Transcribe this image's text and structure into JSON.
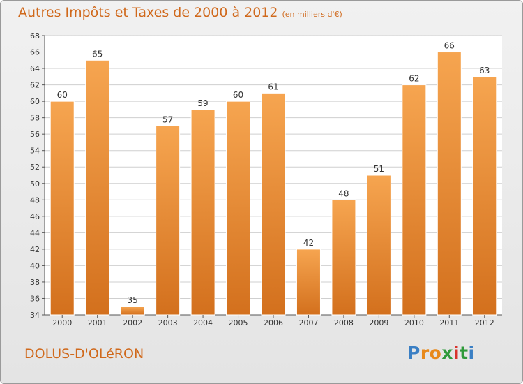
{
  "chart_data": {
    "type": "bar",
    "title": "Autres Impôts et Taxes de 2000 à 2012",
    "subtitle": "(en milliers d'€)",
    "categories": [
      "2000",
      "2001",
      "2002",
      "2003",
      "2004",
      "2005",
      "2006",
      "2007",
      "2008",
      "2009",
      "2010",
      "2011",
      "2012"
    ],
    "values": [
      60,
      65,
      35,
      57,
      59,
      60,
      61,
      42,
      48,
      51,
      62,
      66,
      63
    ],
    "ylim": [
      34,
      68
    ],
    "yticks": [
      34,
      36,
      38,
      40,
      42,
      44,
      46,
      48,
      50,
      52,
      54,
      56,
      58,
      60,
      62,
      64,
      66,
      68
    ],
    "grid": true,
    "xlabel": "",
    "ylabel": "",
    "bar_color_top": "#f6a550",
    "bar_color_bottom": "#d3701d"
  },
  "footer": {
    "location": "DOLUS-D'OLéRON",
    "brand_letters": [
      "P",
      "r",
      "o",
      "x",
      "i",
      "t",
      "i"
    ],
    "brand_colors": [
      "#3a7fc4",
      "#e8891b",
      "#e8891b",
      "#2f9a3a",
      "#d8332c",
      "#2f9a3a",
      "#3a7fc4"
    ]
  },
  "colors": {
    "accent": "#d0691c",
    "grid": "#cfcfcf",
    "axis": "#555555"
  }
}
